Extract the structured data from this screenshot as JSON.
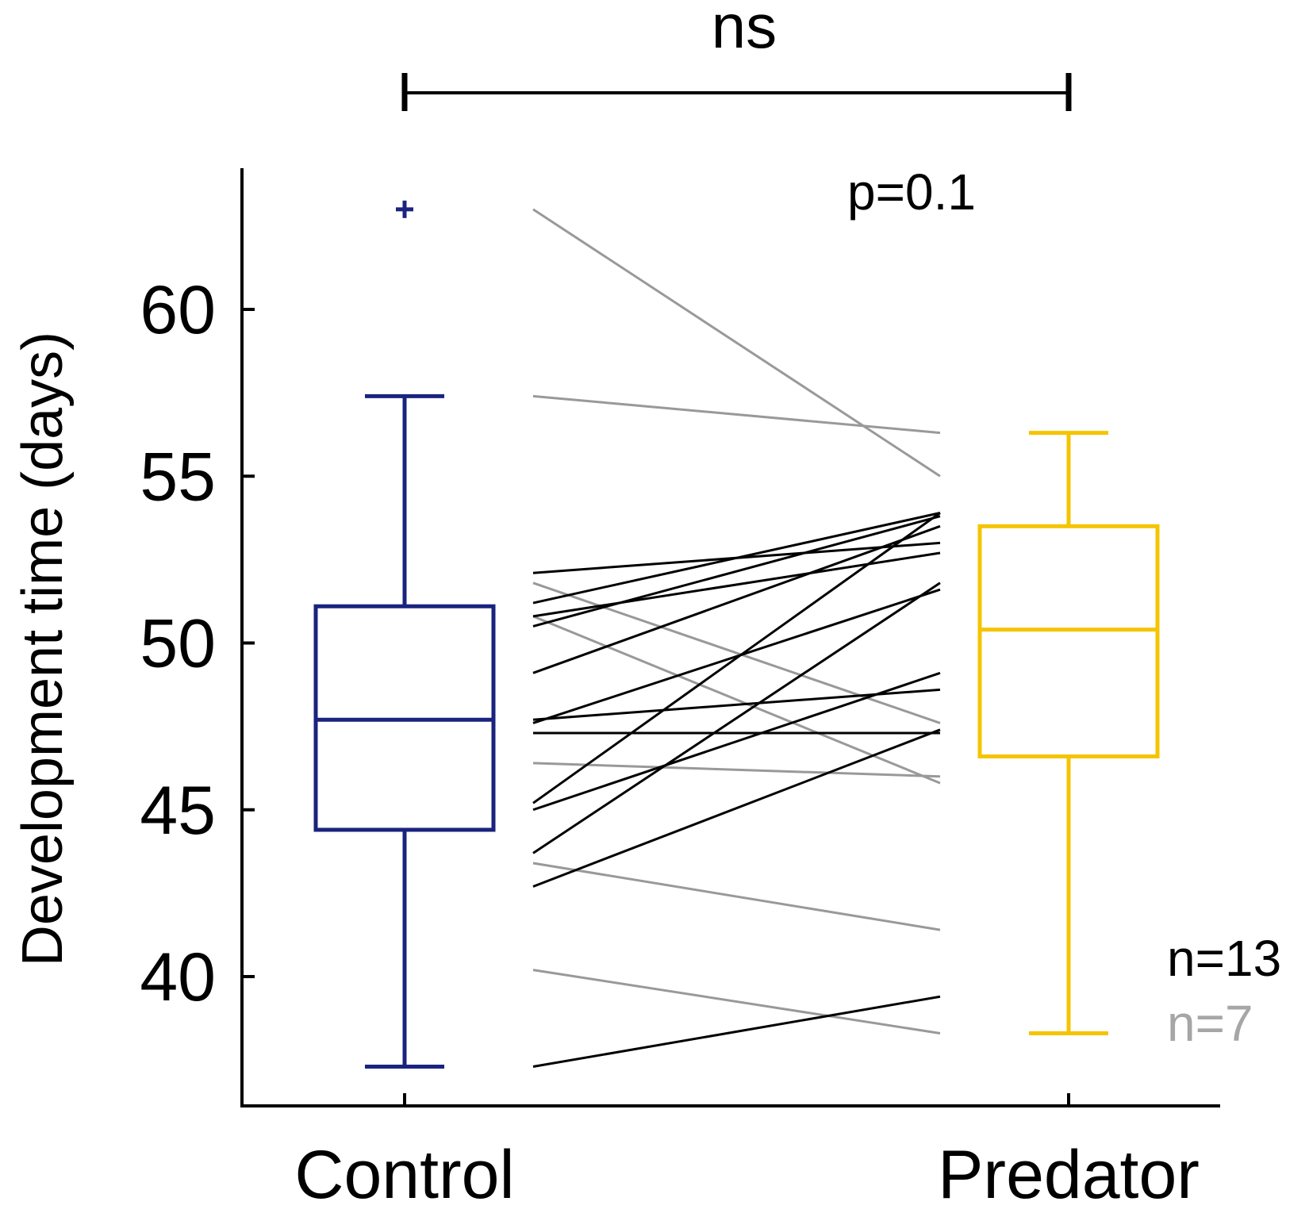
{
  "chart_data": {
    "type": "boxplot-paired",
    "title": "",
    "ylabel": "Development time (days)",
    "xlabel": "",
    "ylim": [
      36.0,
      64.0
    ],
    "yticks": [
      40,
      45,
      50,
      55,
      60
    ],
    "categories": [
      "Control",
      "Predator"
    ],
    "boxes": [
      {
        "name": "Control",
        "color": "#1a237e",
        "whisker_low": 37.3,
        "q1": 44.4,
        "median": 47.7,
        "q3": 51.1,
        "whisker_high": 57.4,
        "outliers": [
          63.0
        ]
      },
      {
        "name": "Predator",
        "color": "#f5c400",
        "whisker_low": 38.3,
        "q1": 46.6,
        "median": 50.4,
        "q3": 53.5,
        "whisker_high": 56.3,
        "outliers": []
      }
    ],
    "paired_lines": {
      "increase": {
        "color": "#000000",
        "label": "n=13",
        "pairs": [
          [
            52.1,
            53.0
          ],
          [
            51.2,
            53.9
          ],
          [
            50.8,
            52.7
          ],
          [
            50.5,
            53.8
          ],
          [
            49.1,
            53.5
          ],
          [
            47.7,
            48.6
          ],
          [
            47.6,
            51.6
          ],
          [
            47.3,
            47.3
          ],
          [
            45.2,
            53.9
          ],
          [
            45.0,
            49.1
          ],
          [
            43.7,
            51.8
          ],
          [
            42.7,
            47.4
          ],
          [
            37.3,
            39.4
          ]
        ]
      },
      "decrease": {
        "color": "#999999",
        "label": "n=7",
        "pairs": [
          [
            63.0,
            55.0
          ],
          [
            57.4,
            56.3
          ],
          [
            51.8,
            47.6
          ],
          [
            50.8,
            45.8
          ],
          [
            46.4,
            46.0
          ],
          [
            43.4,
            41.4
          ],
          [
            40.2,
            38.3
          ]
        ]
      }
    },
    "annotations": {
      "significance": "ns",
      "p_value": "p=0.1"
    }
  }
}
